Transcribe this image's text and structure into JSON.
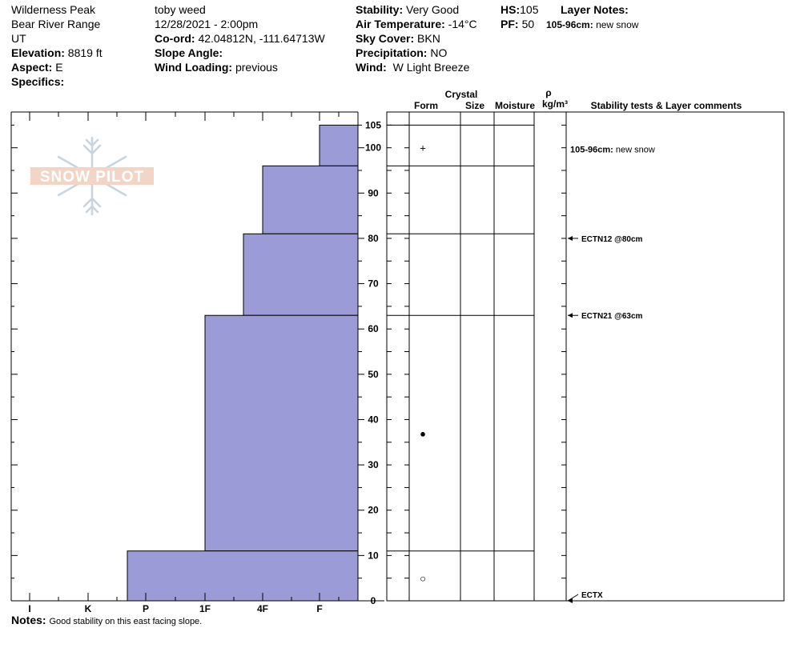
{
  "header": {
    "location": "Wilderness Peak",
    "range": "Bear River Range",
    "state": "UT",
    "elevation_label": "Elevation:",
    "elevation_value": "8819 ft",
    "aspect_label": "Aspect:",
    "aspect_value": "E",
    "specifics_label": "Specifics:",
    "observer": "toby weed",
    "datetime": "12/28/2021 - 2:00pm",
    "coord_label": "Co-ord:",
    "coord_value": "42.04812N, -111.64713W",
    "slope_label": "Slope Angle:",
    "slope_value": "",
    "wind_loading_label": "Wind Loading:",
    "wind_loading_value": "previous",
    "stability_label": "Stability:",
    "stability_value": "Very Good",
    "air_temp_label": "Air Temperature:",
    "air_temp_value": "-14°C",
    "sky_label": "Sky Cover:",
    "sky_value": "BKN",
    "precip_label": "Precipitation:",
    "precip_value": "NO",
    "wind_label": "Wind:",
    "wind_value": "W Light Breeze",
    "hs_label": "HS:",
    "hs_value": "105",
    "pf_label": "PF:",
    "pf_value": "50",
    "layer_notes_label": "Layer Notes:",
    "layer_note_range": "105-96cm:",
    "layer_note_text": "new snow"
  },
  "logo_text": "SNOW PILOT",
  "columns": {
    "crystal": "Crystal",
    "form": "Form",
    "size": "Size",
    "moisture": "Moisture",
    "rho": "ρ",
    "density_unit": "kg/m³",
    "stability": "Stability tests & Layer comments"
  },
  "notes_label": "Notes:",
  "notes_text": "Good stability on this east facing slope.",
  "colors": {
    "bar_fill": "#9B9BD7",
    "frame": "#000000",
    "logo": "#f0c8b8"
  },
  "chart_data": {
    "type": "bar",
    "orientation": "horizontal-profile",
    "ylim": [
      0,
      105
    ],
    "yticks": [
      0,
      10,
      20,
      30,
      40,
      50,
      60,
      70,
      80,
      90,
      100,
      105
    ],
    "hardness_categories": [
      "I",
      "K",
      "P",
      "1F",
      "4F",
      "F"
    ],
    "layers": [
      {
        "top": 105,
        "bottom": 96,
        "hardness": "F"
      },
      {
        "top": 96,
        "bottom": 81,
        "hardness": "4F"
      },
      {
        "top": 81,
        "bottom": 63,
        "hardness": "4F-"
      },
      {
        "top": 63,
        "bottom": 11,
        "hardness": "1F"
      },
      {
        "top": 11,
        "bottom": 0,
        "hardness": "P"
      }
    ],
    "layer_boundaries": [
      105,
      96,
      81,
      63,
      11
    ],
    "crystal_forms": [
      {
        "height": 100,
        "symbol": "+"
      },
      {
        "height": 37,
        "symbol": "●"
      },
      {
        "height": 5,
        "symbol": "○"
      }
    ],
    "comments": [
      {
        "height": 100,
        "range": "105-96cm:",
        "text": "new snow",
        "arrow": false
      },
      {
        "height": 80,
        "text": "ECTN12 @80cm",
        "arrow": true
      },
      {
        "height": 63,
        "text": "ECTN21 @63cm",
        "arrow": true
      },
      {
        "height": 0,
        "text": "ECTX",
        "arrow": true
      }
    ]
  }
}
